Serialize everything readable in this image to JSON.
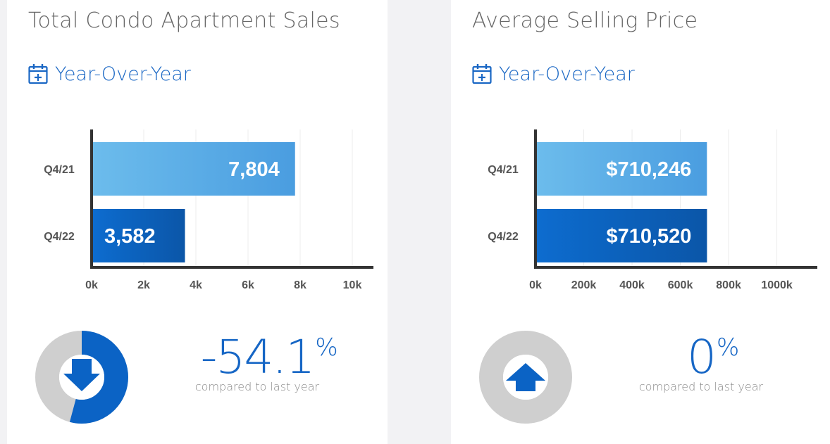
{
  "cards": [
    {
      "title": "Total Condo Apartment Sales",
      "period_label": "Year-Over-Year",
      "change": {
        "value": "-54.1",
        "unit": "%",
        "caption": "compared to last year",
        "direction": "down",
        "ring_fraction": 0.541
      },
      "colors": {
        "accent": "#0b63c5",
        "ring_bg": "#cfcfcf"
      }
    },
    {
      "title": "Average Selling Price",
      "period_label": "Year-Over-Year",
      "change": {
        "value": "0",
        "unit": "%",
        "caption": "compared to last year",
        "direction": "up",
        "ring_fraction": 0
      },
      "colors": {
        "accent": "#0b63c5",
        "ring_bg": "#cfcfcf"
      }
    }
  ],
  "chart_data": [
    {
      "type": "bar",
      "orientation": "horizontal",
      "categories": [
        "Q4/21",
        "Q4/22"
      ],
      "values": [
        7804,
        3582
      ],
      "value_labels": [
        "7,804",
        "3,582"
      ],
      "xlim": [
        0,
        10000
      ],
      "x_ticks": [
        0,
        2000,
        4000,
        6000,
        8000,
        10000
      ],
      "x_tick_labels": [
        "0k",
        "2k",
        "4k",
        "6k",
        "8k",
        "10k"
      ],
      "grid": true,
      "colors": [
        "#5aaee8",
        "#0b63c5"
      ]
    },
    {
      "type": "bar",
      "orientation": "horizontal",
      "categories": [
        "Q4/21",
        "Q4/22"
      ],
      "values": [
        710246,
        710520
      ],
      "value_labels": [
        "$710,246",
        "$710,520"
      ],
      "xlim": [
        0,
        1080000
      ],
      "x_ticks": [
        0,
        200000,
        400000,
        600000,
        800000,
        1000000
      ],
      "x_tick_labels": [
        "0k",
        "200k",
        "400k",
        "600k",
        "800k",
        "1000k"
      ],
      "grid": true,
      "colors": [
        "#5aaee8",
        "#0b63c5"
      ]
    }
  ]
}
